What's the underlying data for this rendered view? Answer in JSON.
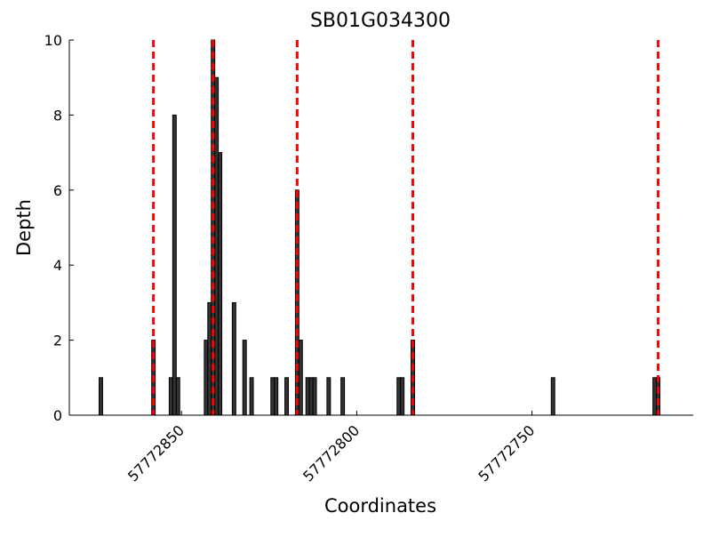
{
  "chart_data": {
    "type": "bar",
    "title": "SB01G034300",
    "x_label": "Coordinates",
    "y_label": "Depth",
    "x": [
      57772873,
      57772858,
      57772853,
      57772852,
      57772851,
      57772843,
      57772842,
      57772841,
      57772840,
      57772839,
      57772835,
      57772832,
      57772830,
      57772824,
      57772823,
      57772820,
      57772817,
      57772816,
      57772814,
      57772813,
      57772812,
      57772808,
      57772804,
      57772788,
      57772787,
      57772784,
      57772744,
      57772715,
      57772714
    ],
    "values": [
      1,
      2,
      1,
      8,
      1,
      2,
      3,
      10,
      9,
      7,
      3,
      2,
      1,
      1,
      1,
      1,
      6,
      2,
      1,
      1,
      1,
      1,
      1,
      1,
      1,
      2,
      1,
      1,
      1
    ],
    "color": "#333333",
    "vlines": [
      57772858,
      57772841,
      57772817,
      57772784,
      57772714
    ],
    "vline_color": "#ff0000",
    "xlim": [
      57772882,
      57772704
    ],
    "xticks": [
      57772850,
      57772800,
      57772750
    ],
    "ylim": [
      0,
      10
    ],
    "yticks": [
      0,
      2,
      4,
      6,
      8,
      10
    ],
    "grid": false
  }
}
